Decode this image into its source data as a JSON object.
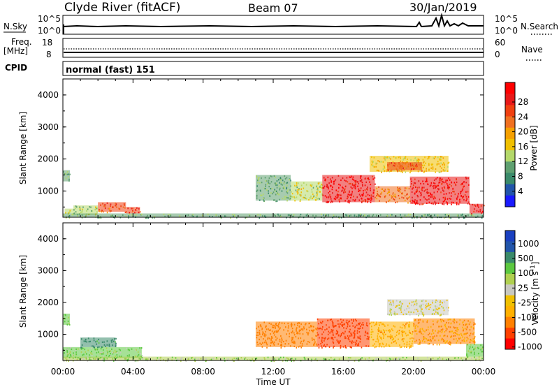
{
  "header": {
    "station": "Clyde River (fitACF)",
    "beam": "Beam 07",
    "date": "30/Jan/2019"
  },
  "strip_labels": {
    "nsky": "N.Sky",
    "nsky_ticks": [
      "10^5",
      "10^0"
    ],
    "nsearch": "N.Search",
    "nsearch_ticks": [
      "10^5",
      "10^0"
    ],
    "freq": "Freq.",
    "freq_unit": "[MHz]",
    "freq_ticks": [
      "18",
      "8"
    ],
    "nave": "Nave",
    "nave_ticks": [
      "60",
      "0"
    ],
    "cpid": "CPID",
    "cpid_value": "normal (fast) 151"
  },
  "x_axis": {
    "label": "Time UT",
    "ticks": [
      "00:00",
      "04:00",
      "08:00",
      "12:00",
      "16:00",
      "20:00",
      "00:00"
    ]
  },
  "colors": {
    "power": [
      "#1a1aff",
      "#2255aa",
      "#3a8a6a",
      "#5fa070",
      "#b4d86a",
      "#f0c000",
      "#f5a000",
      "#f07020",
      "#f04010",
      "#e81818",
      "#ff0000"
    ],
    "velocity": [
      "#ff0000",
      "#ff4000",
      "#ff8000",
      "#ffb000",
      "#f0c000",
      "#c8c8c0",
      "#b0d050",
      "#5cc840",
      "#3a8a6a",
      "#2255aa",
      "#1a40c0"
    ]
  },
  "chart_data": [
    {
      "type": "heatmap",
      "title": "",
      "xlabel": "",
      "ylabel": "Slant Range [km]",
      "xlim": [
        0,
        24
      ],
      "ylim": [
        180,
        4500
      ],
      "yticks": [
        1000,
        2000,
        3000,
        4000
      ],
      "colorbar": {
        "label": "Power [dB]",
        "range": [
          0,
          32
        ],
        "ticks": [
          "28",
          "24",
          "20",
          "16",
          "12",
          "8",
          "4"
        ]
      },
      "regions": [
        {
          "t0": 0.0,
          "t1": 0.4,
          "r0": 1300,
          "r1": 1650,
          "value": 10
        },
        {
          "t0": 0.1,
          "t1": 0.6,
          "r0": 300,
          "r1": 450,
          "value": 14
        },
        {
          "t0": 0.6,
          "t1": 2.0,
          "r0": 250,
          "r1": 550,
          "value": 12
        },
        {
          "t0": 2.0,
          "t1": 3.6,
          "r0": 350,
          "r1": 650,
          "value": 24
        },
        {
          "t0": 3.6,
          "t1": 4.4,
          "r0": 300,
          "r1": 500,
          "value": 26
        },
        {
          "t0": 0.0,
          "t1": 24.0,
          "r0": 180,
          "r1": 300,
          "value": 10
        },
        {
          "t0": 11.0,
          "t1": 13.0,
          "r0": 700,
          "r1": 1500,
          "value": 10
        },
        {
          "t0": 13.0,
          "t1": 14.8,
          "r0": 700,
          "r1": 1300,
          "value": 14
        },
        {
          "t0": 14.8,
          "t1": 17.8,
          "r0": 650,
          "r1": 1500,
          "value": 30
        },
        {
          "t0": 17.8,
          "t1": 19.8,
          "r0": 650,
          "r1": 1150,
          "value": 22
        },
        {
          "t0": 19.8,
          "t1": 23.2,
          "r0": 600,
          "r1": 1450,
          "value": 30
        },
        {
          "t0": 17.5,
          "t1": 22.0,
          "r0": 1600,
          "r1": 2100,
          "value": 16
        },
        {
          "t0": 18.5,
          "t1": 20.5,
          "r0": 1650,
          "r1": 1900,
          "value": 24
        },
        {
          "t0": 23.2,
          "t1": 24.0,
          "r0": 300,
          "r1": 600,
          "value": 28
        }
      ]
    },
    {
      "type": "heatmap",
      "title": "",
      "xlabel": "Time UT",
      "ylabel": "Slant Range [km]",
      "xlim": [
        0,
        24
      ],
      "ylim": [
        180,
        4500
      ],
      "yticks": [
        1000,
        2000,
        3000,
        4000
      ],
      "colorbar": {
        "label": "Velocity [m s^-1]",
        "ticks": [
          "1000",
          "500",
          "100",
          "25",
          "-25",
          "-100",
          "-500",
          "-1000"
        ]
      },
      "regions": [
        {
          "t0": 0.0,
          "t1": 0.4,
          "r0": 1300,
          "r1": 1650,
          "value": 100
        },
        {
          "t0": 0.0,
          "t1": 4.5,
          "r0": 250,
          "r1": 600,
          "value": 60
        },
        {
          "t0": 1.0,
          "t1": 3.0,
          "r0": 600,
          "r1": 900,
          "value": 200
        },
        {
          "t0": 0.0,
          "t1": 24.0,
          "r0": 180,
          "r1": 300,
          "value": 40
        },
        {
          "t0": 11.0,
          "t1": 14.5,
          "r0": 600,
          "r1": 1400,
          "value": -300
        },
        {
          "t0": 14.5,
          "t1": 17.5,
          "r0": 600,
          "r1": 1500,
          "value": -600
        },
        {
          "t0": 17.5,
          "t1": 20.0,
          "r0": 600,
          "r1": 1400,
          "value": -150
        },
        {
          "t0": 20.0,
          "t1": 23.5,
          "r0": 700,
          "r1": 1500,
          "value": -200
        },
        {
          "t0": 18.5,
          "t1": 22.0,
          "r0": 1600,
          "r1": 2100,
          "value": 0
        },
        {
          "t0": 23.0,
          "t1": 24.0,
          "r0": 300,
          "r1": 700,
          "value": 80
        }
      ]
    }
  ]
}
